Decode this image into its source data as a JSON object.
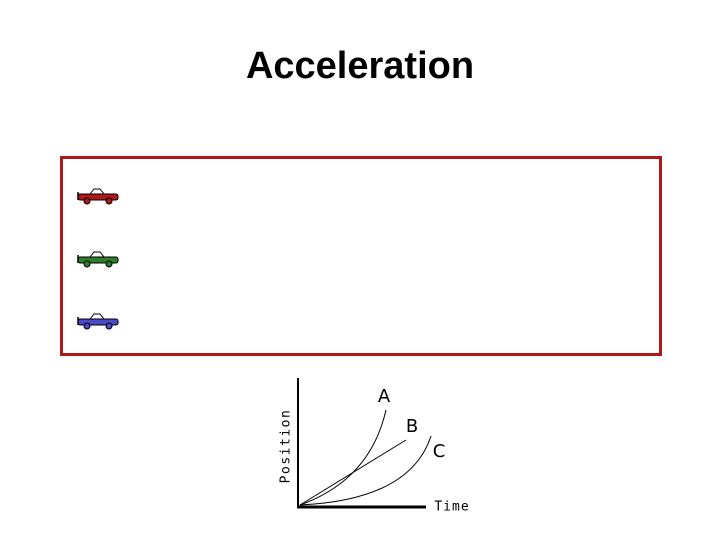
{
  "title": "Acceleration",
  "graph": {
    "y_label": "Position",
    "x_label": "Time",
    "curve_labels": [
      "A",
      "B",
      "C"
    ]
  }
}
